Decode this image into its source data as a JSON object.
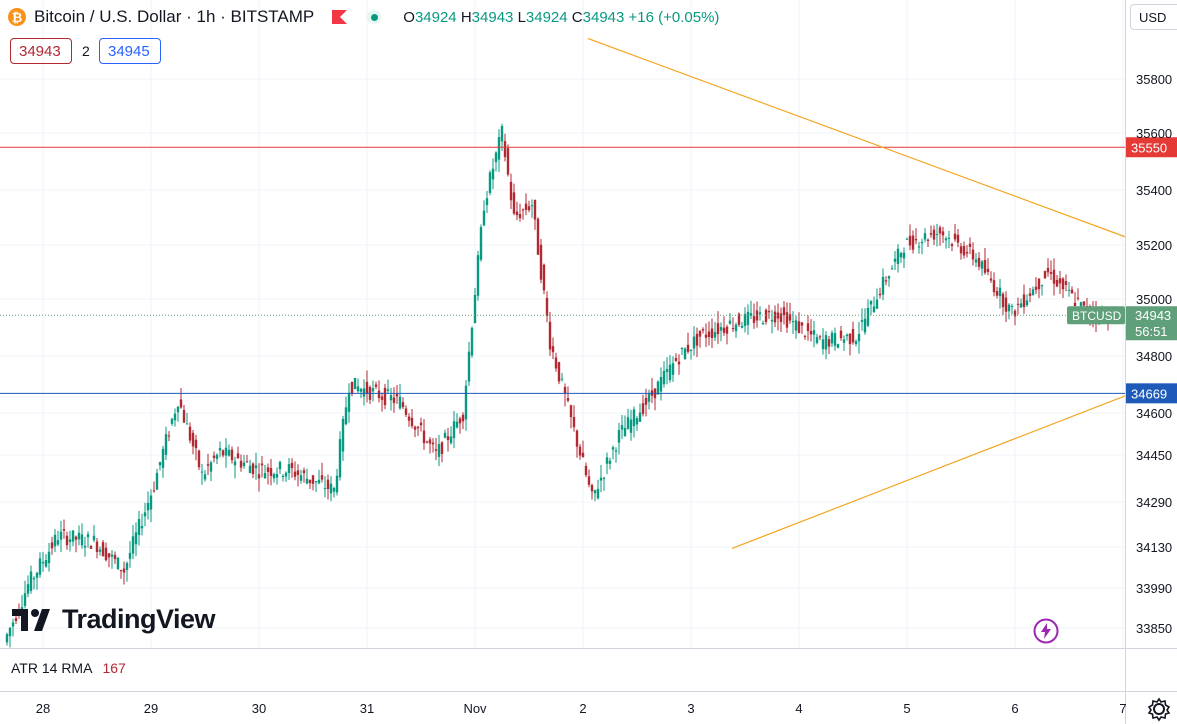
{
  "header": {
    "symbol_title": "Bitcoin / U.S. Dollar · 1h · BITSTAMP",
    "coin_icon": "bitcoin-icon",
    "ohlc": [
      {
        "label": "O",
        "value": "34924"
      },
      {
        "label": "H",
        "value": "34943"
      },
      {
        "label": "L",
        "value": "34924"
      },
      {
        "label": "C",
        "value": "34943"
      }
    ],
    "change": "+16 (+0.05%)",
    "sell_price": "34943",
    "spread": "2",
    "buy_price": "34945",
    "currency": "USD"
  },
  "branding": {
    "logo_text": "TradingView"
  },
  "indicator": {
    "label": "ATR 14 RMA",
    "value": "167"
  },
  "colors": {
    "up": "#089981",
    "down": "#b22833",
    "trendline": "#f5a623",
    "resistance": "#e53935",
    "support": "#1e5bb8",
    "price_label": "#5f9f7a",
    "grid": "#f0f3fa"
  },
  "chart_data": {
    "type": "candlestick",
    "symbol": "BTCUSD",
    "price_axis": {
      "ticks": [
        35800,
        35600,
        35400,
        35200,
        35000,
        34800,
        34600,
        34450,
        34290,
        34130,
        33990,
        33850
      ],
      "range": [
        33770,
        35950
      ]
    },
    "time_axis": {
      "ticks": [
        "28",
        "29",
        "30",
        "31",
        "Nov",
        "2",
        "3",
        "4",
        "5",
        "6",
        "7"
      ]
    },
    "horizontal_lines": [
      {
        "label": "35550",
        "price": 35550,
        "color": "#e53935"
      },
      {
        "label": "34669",
        "price": 34669,
        "color": "#1e5bb8"
      }
    ],
    "trendlines": [
      {
        "from": [
          "Nov 2 00:00",
          35950
        ],
        "to": [
          "Nov 6 22:00",
          35230
        ]
      },
      {
        "from": [
          "Nov 3 06:00",
          34125
        ],
        "to": [
          "Nov 6 22:00",
          34660
        ]
      }
    ],
    "current_price": {
      "label": "BTCUSD",
      "value": "34943",
      "countdown": "56:51"
    },
    "candles_count": 220
  }
}
